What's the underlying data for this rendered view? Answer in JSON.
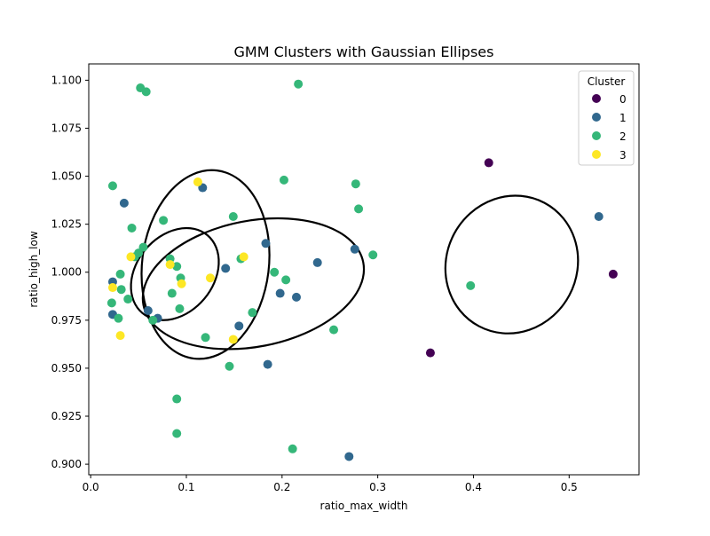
{
  "chart_data": {
    "type": "scatter",
    "title": "GMM Clusters with Gaussian Ellipses",
    "xlabel": "ratio_max_width",
    "ylabel": "ratio_high_low",
    "xlim": [
      -0.002,
      0.573
    ],
    "ylim": [
      0.8945,
      1.1085
    ],
    "x_ticks": [
      0.0,
      0.1,
      0.2,
      0.3,
      0.4,
      0.5
    ],
    "x_tick_labels": [
      "0.0",
      "0.1",
      "0.2",
      "0.3",
      "0.4",
      "0.5"
    ],
    "y_ticks": [
      0.9,
      0.925,
      0.95,
      0.975,
      1.0,
      1.025,
      1.05,
      1.075,
      1.1
    ],
    "y_tick_labels": [
      "0.900",
      "0.925",
      "0.950",
      "0.975",
      "1.000",
      "1.025",
      "1.050",
      "1.075",
      "1.100"
    ],
    "grid": false,
    "legend": {
      "title": "Cluster",
      "placement": "top-right",
      "entries": [
        "0",
        "1",
        "2",
        "3"
      ]
    },
    "series": [
      {
        "name": "0",
        "color": "#440154",
        "points": [
          [
            0.416,
            1.057
          ],
          [
            0.546,
            0.999
          ],
          [
            0.355,
            0.958
          ]
        ]
      },
      {
        "name": "1",
        "color": "#31688e",
        "points": [
          [
            0.035,
            1.036
          ],
          [
            0.117,
            1.044
          ],
          [
            0.531,
            1.029
          ],
          [
            0.183,
            1.015
          ],
          [
            0.276,
            1.012
          ],
          [
            0.141,
            1.002
          ],
          [
            0.237,
            1.005
          ],
          [
            0.023,
            0.995
          ],
          [
            0.198,
            0.989
          ],
          [
            0.215,
            0.987
          ],
          [
            0.06,
            0.98
          ],
          [
            0.023,
            0.978
          ],
          [
            0.07,
            0.976
          ],
          [
            0.155,
            0.972
          ],
          [
            0.185,
            0.952
          ],
          [
            0.27,
            0.904
          ]
        ]
      },
      {
        "name": "2",
        "color": "#35b779",
        "points": [
          [
            0.052,
            1.096
          ],
          [
            0.058,
            1.094
          ],
          [
            0.217,
            1.098
          ],
          [
            0.023,
            1.045
          ],
          [
            0.202,
            1.048
          ],
          [
            0.277,
            1.046
          ],
          [
            0.28,
            1.033
          ],
          [
            0.076,
            1.027
          ],
          [
            0.149,
            1.029
          ],
          [
            0.043,
            1.023
          ],
          [
            0.055,
            1.013
          ],
          [
            0.05,
            1.01
          ],
          [
            0.046,
            1.008
          ],
          [
            0.083,
            1.007
          ],
          [
            0.157,
            1.007
          ],
          [
            0.295,
            1.009
          ],
          [
            0.09,
            1.003
          ],
          [
            0.031,
            0.999
          ],
          [
            0.192,
            1.0
          ],
          [
            0.204,
            0.996
          ],
          [
            0.094,
            0.997
          ],
          [
            0.397,
            0.993
          ],
          [
            0.032,
            0.991
          ],
          [
            0.085,
            0.989
          ],
          [
            0.039,
            0.986
          ],
          [
            0.022,
            0.984
          ],
          [
            0.093,
            0.981
          ],
          [
            0.029,
            0.976
          ],
          [
            0.065,
            0.975
          ],
          [
            0.169,
            0.979
          ],
          [
            0.254,
            0.97
          ],
          [
            0.12,
            0.966
          ],
          [
            0.145,
            0.951
          ],
          [
            0.09,
            0.934
          ],
          [
            0.09,
            0.916
          ],
          [
            0.211,
            0.908
          ]
        ]
      },
      {
        "name": "3",
        "color": "#fde725",
        "points": [
          [
            0.112,
            1.047
          ],
          [
            0.042,
            1.008
          ],
          [
            0.083,
            1.004
          ],
          [
            0.16,
            1.008
          ],
          [
            0.125,
            0.997
          ],
          [
            0.095,
            0.994
          ],
          [
            0.023,
            0.992
          ],
          [
            0.031,
            0.967
          ],
          [
            0.149,
            0.965
          ]
        ]
      }
    ],
    "ellipses": [
      {
        "center": [
          0.12,
          1.004
        ],
        "semi_axes": [
          0.099,
          0.033
        ],
        "tilt_degrees": -83
      },
      {
        "center": [
          0.088,
          0.999
        ],
        "semi_axes": [
          0.053,
          0.02
        ],
        "tilt_degrees": -50
      },
      {
        "center": [
          0.17,
          0.994
        ],
        "semi_axes": [
          0.117,
          0.0328
        ],
        "tilt_degrees": -11
      },
      {
        "center": [
          0.44,
          1.004
        ],
        "semi_axes": [
          0.073,
          0.034
        ],
        "tilt_degrees": -62
      }
    ]
  }
}
